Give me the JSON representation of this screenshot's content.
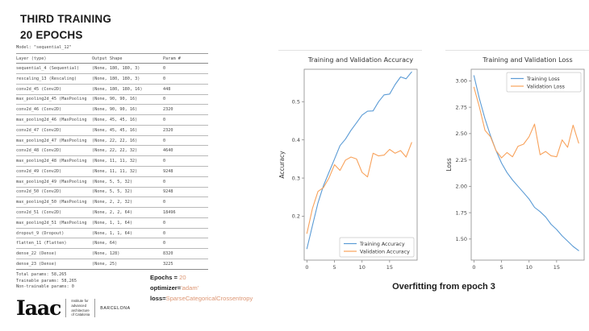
{
  "title": {
    "line1": "THIRD TRAINING",
    "line2": "20 EPOCHS"
  },
  "model_summary": {
    "model_line": "Model: \"sequential_12\"",
    "headers": [
      "Layer (type)",
      "Output Shape",
      "Param #"
    ],
    "rows": [
      [
        "sequential_4 (Sequential)",
        "(None, 180, 180, 3)",
        "0"
      ],
      [
        "rescaling_13 (Rescaling)",
        "(None, 180, 180, 3)",
        "0"
      ],
      [
        "conv2d_45 (Conv2D)",
        "(None, 180, 180, 16)",
        "448"
      ],
      [
        "max_pooling2d_45 (MaxPooling",
        "(None, 90, 90, 16)",
        "0"
      ],
      [
        "conv2d_46 (Conv2D)",
        "(None, 90, 90, 16)",
        "2320"
      ],
      [
        "max_pooling2d_46 (MaxPooling",
        "(None, 45, 45, 16)",
        "0"
      ],
      [
        "conv2d_47 (Conv2D)",
        "(None, 45, 45, 16)",
        "2320"
      ],
      [
        "max_pooling2d_47 (MaxPooling",
        "(None, 22, 22, 16)",
        "0"
      ],
      [
        "conv2d_48 (Conv2D)",
        "(None, 22, 22, 32)",
        "4640"
      ],
      [
        "max_pooling2d_48 (MaxPooling",
        "(None, 11, 11, 32)",
        "0"
      ],
      [
        "conv2d_49 (Conv2D)",
        "(None, 11, 11, 32)",
        "9248"
      ],
      [
        "max_pooling2d_49 (MaxPooling",
        "(None, 5, 5, 32)",
        "0"
      ],
      [
        "conv2d_50 (Conv2D)",
        "(None, 5, 5, 32)",
        "9248"
      ],
      [
        "max_pooling2d_50 (MaxPooling",
        "(None, 2, 2, 32)",
        "0"
      ],
      [
        "conv2d_51 (Conv2D)",
        "(None, 2, 2, 64)",
        "18496"
      ],
      [
        "max_pooling2d_51 (MaxPooling",
        "(None, 1, 1, 64)",
        "0"
      ],
      [
        "dropout_9 (Dropout)",
        "(None, 1, 1, 64)",
        "0"
      ],
      [
        "flatten_11 (Flatten)",
        "(None, 64)",
        "0"
      ],
      [
        "dense_22 (Dense)",
        "(None, 128)",
        "8320"
      ],
      [
        "dense_23 (Dense)",
        "(None, 25)",
        "3225"
      ]
    ],
    "totals": [
      "Total params: 58,265",
      "Trainable params: 58,265",
      "Non-trainable params: 0"
    ]
  },
  "hyperparams": {
    "lines": [
      {
        "label": "Epochs = ",
        "value": "20"
      },
      {
        "label": "optimizer=",
        "value": "'adam'"
      },
      {
        "label": "loss=",
        "value": "SparseCategoricalCrossentropy"
      }
    ],
    "value_color": "#dd9673"
  },
  "caption": "Overfitting from epoch 3",
  "logo": {
    "wordmark": "Iaac",
    "institute_lines": [
      "Institute for",
      "advanced",
      "architecture",
      "of Catalonia"
    ],
    "city": "BARCELONA"
  },
  "colors": {
    "train": "#5b9bd5",
    "validation": "#f8a25b",
    "accent_text": "#dd9673"
  },
  "chart_data": [
    {
      "type": "line",
      "title": "Training and Validation Accuracy",
      "xlabel": "",
      "ylabel": "Accuracy",
      "x": [
        0,
        1,
        2,
        3,
        4,
        5,
        6,
        7,
        8,
        9,
        10,
        11,
        12,
        13,
        14,
        15,
        16,
        17,
        18,
        19
      ],
      "series": [
        {
          "name": "Training Accuracy",
          "color": "#5b9bd5",
          "values": [
            0.115,
            0.175,
            0.235,
            0.28,
            0.315,
            0.35,
            0.385,
            0.402,
            0.425,
            0.445,
            0.465,
            0.475,
            0.476,
            0.5,
            0.518,
            0.52,
            0.545,
            0.565,
            0.56,
            0.578
          ]
        },
        {
          "name": "Validation Accuracy",
          "color": "#f8a25b",
          "values": [
            0.155,
            0.22,
            0.265,
            0.275,
            0.3,
            0.335,
            0.32,
            0.347,
            0.355,
            0.35,
            0.315,
            0.303,
            0.365,
            0.358,
            0.36,
            0.375,
            0.365,
            0.372,
            0.355,
            0.393
          ]
        }
      ],
      "xlim": [
        -0.5,
        20
      ],
      "ylim": [
        0.085,
        0.585
      ],
      "xticks": [
        0,
        5,
        10,
        15
      ],
      "xtick_labels": [
        "0",
        "5",
        "10",
        "15"
      ],
      "yticks": [
        0.2,
        0.3,
        0.4,
        0.5
      ],
      "ytick_labels": [
        "0.2",
        "0.3",
        "0.4",
        "0.5"
      ],
      "grid": false,
      "legend": "lower-right"
    },
    {
      "type": "line",
      "title": "Training and Validation Loss",
      "xlabel": "",
      "ylabel": "Loss",
      "x": [
        0,
        1,
        2,
        3,
        4,
        5,
        6,
        7,
        8,
        9,
        10,
        11,
        12,
        13,
        14,
        15,
        16,
        17,
        18,
        19
      ],
      "series": [
        {
          "name": "Training Loss",
          "color": "#5b9bd5",
          "values": [
            3.05,
            2.83,
            2.64,
            2.48,
            2.34,
            2.22,
            2.13,
            2.06,
            2.0,
            1.94,
            1.88,
            1.8,
            1.76,
            1.71,
            1.64,
            1.59,
            1.53,
            1.48,
            1.43,
            1.39
          ]
        },
        {
          "name": "Validation Loss",
          "color": "#f8a25b",
          "values": [
            2.94,
            2.75,
            2.53,
            2.47,
            2.34,
            2.27,
            2.32,
            2.28,
            2.38,
            2.4,
            2.47,
            2.59,
            2.3,
            2.33,
            2.29,
            2.28,
            2.44,
            2.37,
            2.58,
            2.41
          ]
        }
      ],
      "xlim": [
        -0.5,
        20
      ],
      "ylim": [
        1.3,
        3.11
      ],
      "xticks": [
        0,
        5,
        10,
        15
      ],
      "xtick_labels": [
        "0",
        "5",
        "10",
        "15"
      ],
      "yticks": [
        1.5,
        1.75,
        2.0,
        2.25,
        2.5,
        2.75,
        3.0
      ],
      "ytick_labels": [
        "1.50",
        "1.75",
        "2.00",
        "2.25",
        "2.50",
        "2.75",
        "3.00"
      ],
      "grid": false,
      "legend": "upper-right"
    }
  ]
}
